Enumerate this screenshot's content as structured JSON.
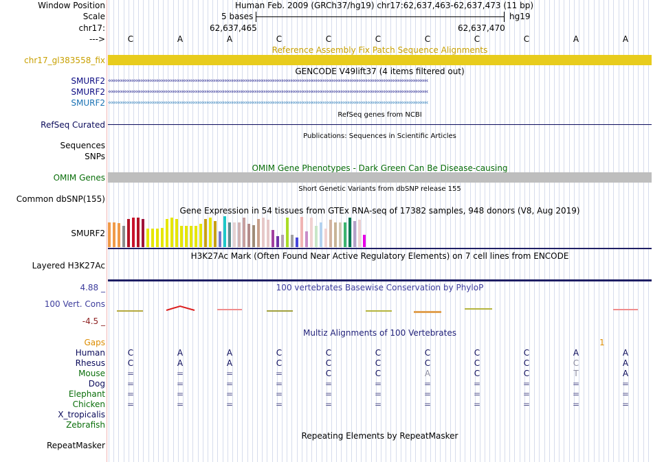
{
  "position": {
    "window_position_label": "Window Position",
    "window_title": "Human Feb. 2009 (GRCh37/hg19)   chr17:62,637,463-62,637,473 (11 bp)",
    "scale_label": "Scale",
    "scale_text": "5 bases",
    "assembly": "hg19",
    "chrom_label": "chr17:",
    "coord_left": "62,637,465",
    "coord_right": "62,637,470",
    "strand_label": "--->",
    "bases": [
      "C",
      "A",
      "A",
      "C",
      "C",
      "C",
      "C",
      "C",
      "C",
      "A",
      "A"
    ]
  },
  "fix_patch": {
    "title": "Reference Assembly Fix Patch Sequence Alignments",
    "label": "chr17_gl383558_fix",
    "color": "#e8cc1c"
  },
  "gencode": {
    "title": "GENCODE V49lift37 (4 items filtered out)",
    "rows": [
      {
        "name": "SMURF2",
        "color": "#0a0a82"
      },
      {
        "name": "SMURF2",
        "color": "#0a0a82"
      },
      {
        "name": "SMURF2",
        "color": "#1a72b4"
      }
    ],
    "arrow_text": "‹‹‹‹‹‹‹‹‹‹‹‹‹‹‹‹‹‹‹‹‹‹‹‹‹‹‹‹‹‹‹‹‹‹‹‹‹‹‹‹‹‹‹‹‹‹‹‹‹‹‹‹‹‹‹‹‹‹‹‹‹‹‹‹‹‹‹‹‹‹‹‹‹‹‹‹‹‹‹‹‹‹‹‹‹‹‹‹‹‹‹‹‹‹‹‹‹‹‹‹‹‹‹‹‹‹‹‹‹‹‹‹‹‹‹‹‹‹‹‹‹‹‹‹‹‹‹‹‹‹‹‹‹‹‹‹‹‹‹‹‹‹‹‹‹‹‹‹‹‹‹‹‹‹‹‹‹‹‹‹‹‹‹‹‹‹‹‹‹‹‹‹‹‹‹‹‹‹‹"
  },
  "refseq": {
    "title": "RefSeq genes from NCBI",
    "label": "RefSeq Curated",
    "color": "#0a0a5a"
  },
  "publications": {
    "title": "Publications: Sequences in Scientific Articles",
    "labels": [
      "Sequences",
      "SNPs"
    ]
  },
  "omim": {
    "title": "OMIM Gene Phenotypes - Dark Green Can Be Disease-causing",
    "label": "OMIM Genes",
    "color": "#0a6e0a"
  },
  "dbsnp": {
    "title": "Short Genetic Variants from dbSNP release 155",
    "label": "Common dbSNP(155)"
  },
  "gtex": {
    "title": "Gene Expression in 54 tissues from GTEx RNA-seq of 17382 samples, 948 donors (V8, Aug 2019)",
    "label": "SMURF2",
    "chart_data": {
      "type": "bar",
      "title": "Gene Expression in 54 tissues from GTEx RNA-seq of 17382 samples, 948 donors (V8, Aug 2019)",
      "xlabel": "",
      "ylabel": "",
      "ylim": [
        0,
        1
      ],
      "values": [
        0.8,
        0.8,
        0.78,
        0.68,
        0.9,
        0.95,
        0.95,
        0.9,
        0.6,
        0.6,
        0.6,
        0.62,
        0.9,
        0.95,
        0.9,
        0.7,
        0.7,
        0.7,
        0.7,
        0.75,
        0.9,
        0.95,
        0.85,
        0.5,
        1.0,
        0.8,
        0.8,
        0.8,
        0.95,
        0.75,
        0.72,
        0.9,
        0.95,
        0.88,
        0.55,
        0.35,
        0.4,
        0.95,
        0.4,
        0.3,
        0.98,
        0.5,
        0.95,
        0.68,
        0.8,
        0.6,
        0.88,
        0.8,
        0.8,
        0.8,
        0.95,
        0.85,
        0.88,
        0.4
      ],
      "colors": [
        "#f09a48",
        "#f09a48",
        "#f09a48",
        "#8c8c8c",
        "#b41428",
        "#c8122c",
        "#b41428",
        "#a0143c",
        "#e6e600",
        "#e6e600",
        "#e6e600",
        "#e6e600",
        "#e6e600",
        "#e6e600",
        "#e6e600",
        "#e6e600",
        "#e6e600",
        "#e6e600",
        "#e6e600",
        "#e6e600",
        "#c8a014",
        "#e6e600",
        "#c8a014",
        "#7878c8",
        "#1ec8c8",
        "#5a8c8c",
        "#e6d2d2",
        "#d2b4b4",
        "#c8a0a0",
        "#b48c8c",
        "#a08c78",
        "#c8a08c",
        "#e6c8c8",
        "#e6c8c8",
        "#a040a0",
        "#6f32a8",
        "#b4a0b4",
        "#aadc28",
        "#a0a0a0",
        "#4646dc",
        "#f0b4b4",
        "#c88cc8",
        "#f0d2d2",
        "#c8e6c8",
        "#b4d2f0",
        "#f0d2d2",
        "#d2b4a0",
        "#c8b496",
        "#d2c8b4",
        "#3cb46e",
        "#007850",
        "#b4a0c8",
        "#f0d2d2",
        "#e600e6"
      ]
    }
  },
  "h3k27ac": {
    "title": "H3K27Ac Mark (Often Found Near Active Regulatory Elements) on 7 cell lines from ENCODE",
    "label": "Layered H3K27Ac",
    "color": "#1e1e64"
  },
  "phylop": {
    "title": "100 vertebrates Basewise Conservation by PhyloP",
    "label": "100 Vert. Cons",
    "max": "4.88 _",
    "min": "-4.5 _"
  },
  "multiz": {
    "title": "Multiz Alignments of 100 Vertebrates",
    "gaps_label": "Gaps",
    "gap_marker": "1",
    "species": [
      {
        "name": "Human",
        "color": "#0a0a5a",
        "bases": [
          "C",
          "A",
          "A",
          "C",
          "C",
          "C",
          "C",
          "C",
          "C",
          "A",
          "A"
        ]
      },
      {
        "name": "Rhesus",
        "color": "#0a0a5a",
        "bases": [
          "C",
          "A",
          "A",
          "C",
          "C",
          "C",
          "C",
          "C",
          "C",
          "C",
          "A"
        ]
      },
      {
        "name": "Mouse",
        "color": "#0a6e0a",
        "bases": [
          "=",
          "=",
          "=",
          "=",
          "C",
          "C",
          "A",
          "C",
          "C",
          "T",
          "A"
        ]
      },
      {
        "name": "Dog",
        "color": "#0a0a5a",
        "bases": [
          "=",
          "=",
          "=",
          "=",
          "=",
          "=",
          "=",
          "=",
          "=",
          "=",
          "="
        ]
      },
      {
        "name": "Elephant",
        "color": "#0a6e0a",
        "bases": [
          "=",
          "=",
          "=",
          "=",
          "=",
          "=",
          "=",
          "=",
          "=",
          "=",
          "="
        ]
      },
      {
        "name": "Chicken",
        "color": "#0a6e0a",
        "bases": [
          "=",
          "=",
          "=",
          "=",
          "=",
          "=",
          "=",
          "=",
          "=",
          "=",
          "="
        ]
      },
      {
        "name": "X_tropicalis",
        "color": "#0a0a5a",
        "bases": []
      },
      {
        "name": "Zebrafish",
        "color": "#0a6e0a",
        "bases": []
      }
    ]
  },
  "repeatmasker": {
    "title": "Repeating Elements by RepeatMasker",
    "label": "RepeatMasker"
  }
}
